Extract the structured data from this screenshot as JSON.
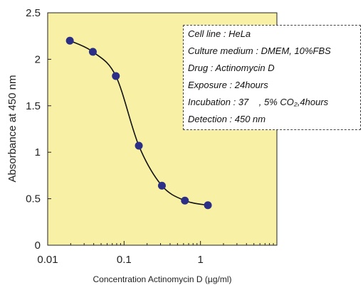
{
  "chart_data": {
    "type": "line",
    "title": "",
    "xlabel": "Concentration Actinomycin D (µg/ml)",
    "ylabel": "Absorbance at 450 nm",
    "x_scale": "log",
    "xlim": [
      0.01,
      10
    ],
    "ylim": [
      0,
      2.5
    ],
    "x_tick_labels": [
      "0.01",
      "0.1",
      "1"
    ],
    "y_tick_labels": [
      "0",
      "0.5",
      "1",
      "1.5",
      "2",
      "2.5"
    ],
    "grid": false,
    "plot_background": "#f8f0a4",
    "marker_color": "#2b2f86",
    "line_color": "#111111",
    "series": [
      {
        "x": [
          0.0195,
          0.039,
          0.078,
          0.156,
          0.3125,
          0.625,
          1.25
        ],
        "values": [
          2.2,
          2.08,
          1.82,
          1.07,
          0.64,
          0.48,
          0.43
        ]
      }
    ],
    "annotations": [
      "Cell line : HeLa",
      "Culture medium : DMEM, 10%FBS",
      "Drug : Actinomycin D",
      "Exposure : 24hours",
      "Incubation : 37    , 5% CO₂,4hours",
      "Detection : 450 nm"
    ]
  }
}
